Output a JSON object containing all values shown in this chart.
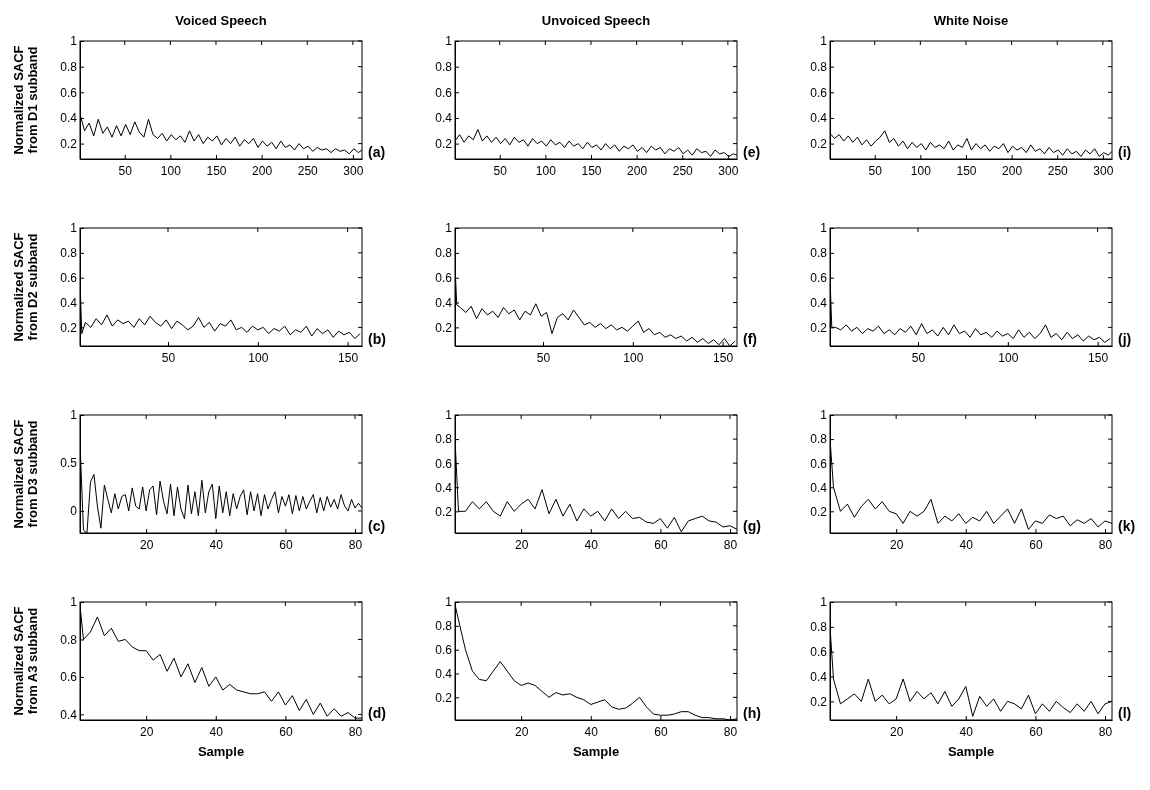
{
  "chart_data": [
    {
      "type": "line",
      "title": "Voiced Speech",
      "ylabel": "Normalized SACF\nfrom D1 subband",
      "annotations": [
        "(a)"
      ],
      "xlim": [
        1,
        310
      ],
      "ylim": [
        0.08,
        1
      ],
      "xticks": [
        50,
        100,
        150,
        200,
        250,
        300
      ],
      "yticks": [
        0.2,
        0.4,
        0.6,
        0.8,
        1
      ],
      "x": [
        1,
        6,
        11,
        16,
        21,
        26,
        31,
        36,
        41,
        46,
        51,
        56,
        61,
        66,
        71,
        76,
        81,
        86,
        91,
        96,
        101,
        106,
        111,
        116,
        121,
        126,
        131,
        136,
        141,
        146,
        151,
        156,
        161,
        166,
        171,
        176,
        181,
        186,
        191,
        196,
        201,
        206,
        211,
        216,
        221,
        226,
        231,
        236,
        241,
        246,
        251,
        256,
        261,
        266,
        271,
        276,
        281,
        286,
        291,
        296,
        301,
        306,
        310
      ],
      "series": [
        {
          "color": "#000000",
          "values": [
            0.43,
            0.3,
            0.36,
            0.26,
            0.39,
            0.28,
            0.33,
            0.25,
            0.34,
            0.26,
            0.35,
            0.27,
            0.37,
            0.29,
            0.25,
            0.39,
            0.27,
            0.24,
            0.28,
            0.22,
            0.27,
            0.23,
            0.26,
            0.21,
            0.3,
            0.22,
            0.27,
            0.2,
            0.25,
            0.22,
            0.26,
            0.19,
            0.24,
            0.2,
            0.25,
            0.18,
            0.23,
            0.2,
            0.24,
            0.17,
            0.22,
            0.18,
            0.21,
            0.16,
            0.22,
            0.17,
            0.19,
            0.15,
            0.2,
            0.16,
            0.18,
            0.14,
            0.17,
            0.15,
            0.16,
            0.13,
            0.16,
            0.14,
            0.15,
            0.12,
            0.16,
            0.13,
            0.15
          ]
        }
      ]
    },
    {
      "type": "line",
      "title": "Unvoiced Speech",
      "annotations": [
        "(e)"
      ],
      "xlim": [
        1,
        310
      ],
      "ylim": [
        0.08,
        1
      ],
      "xticks": [
        50,
        100,
        150,
        200,
        250,
        300
      ],
      "yticks": [
        0.2,
        0.4,
        0.6,
        0.8,
        1
      ],
      "x": [
        1,
        6,
        11,
        16,
        21,
        26,
        31,
        36,
        41,
        46,
        51,
        56,
        61,
        66,
        71,
        76,
        81,
        86,
        91,
        96,
        101,
        106,
        111,
        116,
        121,
        126,
        131,
        136,
        141,
        146,
        151,
        156,
        161,
        166,
        171,
        176,
        181,
        186,
        191,
        196,
        201,
        206,
        211,
        216,
        221,
        226,
        231,
        236,
        241,
        246,
        251,
        256,
        261,
        266,
        271,
        276,
        281,
        286,
        291,
        296,
        301,
        306,
        310
      ],
      "series": [
        {
          "color": "#000000",
          "values": [
            0.22,
            0.27,
            0.21,
            0.26,
            0.23,
            0.31,
            0.22,
            0.26,
            0.21,
            0.25,
            0.2,
            0.24,
            0.19,
            0.25,
            0.21,
            0.23,
            0.18,
            0.24,
            0.2,
            0.22,
            0.18,
            0.23,
            0.19,
            0.21,
            0.17,
            0.22,
            0.18,
            0.2,
            0.16,
            0.21,
            0.17,
            0.19,
            0.15,
            0.2,
            0.16,
            0.19,
            0.14,
            0.18,
            0.16,
            0.19,
            0.14,
            0.17,
            0.13,
            0.18,
            0.15,
            0.17,
            0.12,
            0.16,
            0.14,
            0.17,
            0.12,
            0.15,
            0.11,
            0.16,
            0.13,
            0.14,
            0.1,
            0.15,
            0.12,
            0.13,
            0.1,
            0.12,
            0.11
          ]
        }
      ]
    },
    {
      "type": "line",
      "title": "White Noise",
      "annotations": [
        "(i)"
      ],
      "xlim": [
        1,
        310
      ],
      "ylim": [
        0.08,
        1
      ],
      "xticks": [
        50,
        100,
        150,
        200,
        250,
        300
      ],
      "yticks": [
        0.2,
        0.4,
        0.6,
        0.8,
        1
      ],
      "x": [
        1,
        6,
        11,
        16,
        21,
        26,
        31,
        36,
        41,
        46,
        51,
        56,
        61,
        66,
        71,
        76,
        81,
        86,
        91,
        96,
        101,
        106,
        111,
        116,
        121,
        126,
        131,
        136,
        141,
        146,
        151,
        156,
        161,
        166,
        171,
        176,
        181,
        186,
        191,
        196,
        201,
        206,
        211,
        216,
        221,
        226,
        231,
        236,
        241,
        246,
        251,
        256,
        261,
        266,
        271,
        276,
        281,
        286,
        291,
        296,
        301,
        306,
        310
      ],
      "series": [
        {
          "color": "#000000",
          "values": [
            0.28,
            0.24,
            0.27,
            0.22,
            0.26,
            0.21,
            0.25,
            0.19,
            0.23,
            0.18,
            0.22,
            0.25,
            0.3,
            0.21,
            0.24,
            0.18,
            0.22,
            0.16,
            0.21,
            0.17,
            0.2,
            0.15,
            0.21,
            0.17,
            0.19,
            0.16,
            0.22,
            0.15,
            0.19,
            0.17,
            0.24,
            0.15,
            0.2,
            0.16,
            0.19,
            0.14,
            0.18,
            0.16,
            0.2,
            0.13,
            0.18,
            0.15,
            0.17,
            0.13,
            0.19,
            0.14,
            0.16,
            0.12,
            0.17,
            0.13,
            0.15,
            0.11,
            0.16,
            0.12,
            0.14,
            0.1,
            0.15,
            0.12,
            0.16,
            0.1,
            0.13,
            0.11,
            0.14
          ]
        }
      ]
    },
    {
      "type": "line",
      "ylabel": "Normalized SACF\nfrom D2 subband",
      "annotations": [
        "(b)"
      ],
      "xlim": [
        1,
        158
      ],
      "ylim": [
        0.05,
        1
      ],
      "xticks": [
        50,
        100,
        150
      ],
      "yticks": [
        0.2,
        0.4,
        0.6,
        0.8,
        1
      ],
      "x": [
        1,
        2,
        4,
        7,
        10,
        13,
        16,
        19,
        22,
        25,
        28,
        31,
        34,
        37,
        40,
        43,
        46,
        49,
        52,
        55,
        58,
        61,
        64,
        67,
        70,
        73,
        76,
        79,
        82,
        85,
        88,
        91,
        94,
        97,
        100,
        103,
        106,
        109,
        112,
        115,
        118,
        121,
        124,
        127,
        130,
        133,
        136,
        139,
        142,
        145,
        148,
        151,
        154,
        157
      ],
      "series": [
        {
          "color": "#000000",
          "values": [
            0.57,
            0.15,
            0.24,
            0.2,
            0.27,
            0.22,
            0.3,
            0.21,
            0.26,
            0.23,
            0.25,
            0.2,
            0.27,
            0.22,
            0.29,
            0.24,
            0.21,
            0.26,
            0.19,
            0.25,
            0.22,
            0.18,
            0.21,
            0.28,
            0.2,
            0.24,
            0.17,
            0.23,
            0.21,
            0.26,
            0.18,
            0.2,
            0.16,
            0.21,
            0.18,
            0.2,
            0.15,
            0.19,
            0.17,
            0.21,
            0.14,
            0.18,
            0.16,
            0.21,
            0.13,
            0.19,
            0.15,
            0.18,
            0.12,
            0.17,
            0.14,
            0.16,
            0.11,
            0.15
          ]
        }
      ]
    },
    {
      "type": "line",
      "annotations": [
        "(f)"
      ],
      "xlim": [
        1,
        158
      ],
      "ylim": [
        0.05,
        1
      ],
      "xticks": [
        50,
        100,
        150
      ],
      "yticks": [
        0.2,
        0.4,
        0.6,
        0.8,
        1
      ],
      "x": [
        1,
        2,
        4,
        7,
        10,
        13,
        16,
        19,
        22,
        25,
        28,
        31,
        34,
        37,
        40,
        43,
        46,
        49,
        52,
        55,
        58,
        61,
        64,
        67,
        70,
        73,
        76,
        79,
        82,
        85,
        88,
        91,
        94,
        97,
        100,
        103,
        106,
        109,
        112,
        115,
        118,
        121,
        124,
        127,
        130,
        133,
        136,
        139,
        142,
        145,
        148,
        151,
        154,
        157
      ],
      "series": [
        {
          "color": "#000000",
          "values": [
            0.69,
            0.38,
            0.36,
            0.32,
            0.37,
            0.27,
            0.35,
            0.3,
            0.33,
            0.28,
            0.36,
            0.31,
            0.34,
            0.26,
            0.33,
            0.3,
            0.39,
            0.29,
            0.32,
            0.15,
            0.28,
            0.31,
            0.26,
            0.34,
            0.28,
            0.22,
            0.24,
            0.2,
            0.23,
            0.19,
            0.22,
            0.18,
            0.2,
            0.17,
            0.21,
            0.25,
            0.16,
            0.19,
            0.14,
            0.16,
            0.12,
            0.14,
            0.11,
            0.13,
            0.09,
            0.12,
            0.08,
            0.11,
            0.07,
            0.1,
            0.06,
            0.11,
            0.05,
            0.09
          ]
        }
      ]
    },
    {
      "type": "line",
      "annotations": [
        "(j)"
      ],
      "xlim": [
        1,
        158
      ],
      "ylim": [
        0.05,
        1
      ],
      "xticks": [
        50,
        100,
        150
      ],
      "yticks": [
        0.2,
        0.4,
        0.6,
        0.8,
        1
      ],
      "x": [
        1,
        2,
        4,
        7,
        10,
        13,
        16,
        19,
        22,
        25,
        28,
        31,
        34,
        37,
        40,
        43,
        46,
        49,
        52,
        55,
        58,
        61,
        64,
        67,
        70,
        73,
        76,
        79,
        82,
        85,
        88,
        91,
        94,
        97,
        100,
        103,
        106,
        109,
        112,
        115,
        118,
        121,
        124,
        127,
        130,
        133,
        136,
        139,
        142,
        145,
        148,
        151,
        154,
        157
      ],
      "series": [
        {
          "color": "#000000",
          "values": [
            0.6,
            0.2,
            0.2,
            0.18,
            0.22,
            0.17,
            0.2,
            0.15,
            0.19,
            0.17,
            0.21,
            0.15,
            0.18,
            0.14,
            0.19,
            0.16,
            0.21,
            0.14,
            0.23,
            0.15,
            0.18,
            0.13,
            0.2,
            0.14,
            0.22,
            0.15,
            0.17,
            0.12,
            0.19,
            0.14,
            0.16,
            0.12,
            0.17,
            0.13,
            0.15,
            0.11,
            0.18,
            0.12,
            0.16,
            0.11,
            0.15,
            0.22,
            0.12,
            0.15,
            0.1,
            0.16,
            0.11,
            0.14,
            0.09,
            0.13,
            0.1,
            0.12,
            0.08,
            0.11
          ]
        }
      ]
    },
    {
      "type": "line",
      "ylabel": "Normalized SACF\nfrom D3 subband",
      "annotations": [
        "(c)"
      ],
      "xlim": [
        1,
        82
      ],
      "ylim": [
        -0.23,
        1
      ],
      "xticks": [
        20,
        40,
        60,
        80
      ],
      "yticks": [
        0,
        0.5,
        1
      ],
      "x": [
        1,
        2,
        3,
        4,
        5,
        6,
        7,
        8,
        9,
        10,
        11,
        12,
        13,
        14,
        15,
        16,
        17,
        18,
        19,
        20,
        21,
        22,
        23,
        24,
        25,
        26,
        27,
        28,
        29,
        30,
        31,
        32,
        33,
        34,
        35,
        36,
        37,
        38,
        39,
        40,
        41,
        42,
        43,
        44,
        45,
        46,
        47,
        48,
        49,
        50,
        51,
        52,
        53,
        54,
        55,
        56,
        57,
        58,
        59,
        60,
        61,
        62,
        63,
        64,
        65,
        66,
        67,
        68,
        69,
        70,
        71,
        72,
        73,
        74,
        75,
        76,
        77,
        78,
        79,
        80,
        81,
        82
      ],
      "series": [
        {
          "color": "#000000",
          "values": [
            0.7,
            -0.2,
            -0.23,
            0.3,
            0.38,
            0.05,
            -0.18,
            0.27,
            0.12,
            -0.02,
            0.18,
            0.02,
            0.15,
            0.17,
            0.0,
            0.24,
            0.05,
            0.02,
            0.25,
            0.0,
            0.22,
            0.26,
            -0.04,
            0.31,
            0.1,
            -0.03,
            0.28,
            -0.05,
            0.25,
            0.02,
            -0.08,
            0.27,
            -0.03,
            0.2,
            -0.05,
            0.32,
            -0.02,
            0.2,
            0.28,
            -0.08,
            0.26,
            -0.02,
            0.2,
            -0.05,
            0.18,
            0.02,
            0.15,
            0.22,
            -0.04,
            0.2,
            0.0,
            0.18,
            -0.05,
            0.17,
            0.02,
            0.12,
            0.2,
            -0.02,
            0.15,
            0.05,
            0.17,
            -0.03,
            0.16,
            0.0,
            0.15,
            0.02,
            0.1,
            0.17,
            -0.02,
            0.14,
            0.0,
            0.15,
            0.04,
            0.12,
            0.02,
            0.17,
            0.05,
            0.0,
            0.12,
            0.03,
            0.08,
            0.03
          ]
        }
      ]
    },
    {
      "type": "line",
      "annotations": [
        "(g)"
      ],
      "xlim": [
        1,
        82
      ],
      "ylim": [
        0.02,
        1
      ],
      "xticks": [
        20,
        40,
        60,
        80
      ],
      "yticks": [
        0.2,
        0.4,
        0.6,
        0.8,
        1
      ],
      "x": [
        1,
        2,
        4,
        6,
        8,
        10,
        12,
        14,
        16,
        18,
        20,
        22,
        24,
        26,
        28,
        30,
        32,
        34,
        36,
        38,
        40,
        42,
        44,
        46,
        48,
        50,
        52,
        54,
        56,
        58,
        60,
        62,
        64,
        66,
        68,
        70,
        72,
        74,
        76,
        78,
        80,
        82
      ],
      "series": [
        {
          "color": "#000000",
          "values": [
            0.8,
            0.2,
            0.2,
            0.28,
            0.22,
            0.28,
            0.2,
            0.16,
            0.28,
            0.2,
            0.26,
            0.3,
            0.22,
            0.38,
            0.18,
            0.3,
            0.16,
            0.26,
            0.12,
            0.22,
            0.16,
            0.2,
            0.12,
            0.22,
            0.14,
            0.2,
            0.14,
            0.15,
            0.11,
            0.1,
            0.14,
            0.06,
            0.15,
            0.03,
            0.12,
            0.14,
            0.16,
            0.12,
            0.11,
            0.07,
            0.08,
            0.05
          ]
        }
      ]
    },
    {
      "type": "line",
      "annotations": [
        "(k)"
      ],
      "xlim": [
        1,
        82
      ],
      "ylim": [
        0.02,
        1
      ],
      "xticks": [
        20,
        40,
        60,
        80
      ],
      "yticks": [
        0.2,
        0.4,
        0.6,
        0.8,
        1
      ],
      "x": [
        1,
        2,
        4,
        6,
        8,
        10,
        12,
        14,
        16,
        18,
        20,
        22,
        24,
        26,
        28,
        30,
        32,
        34,
        36,
        38,
        40,
        42,
        44,
        46,
        48,
        50,
        52,
        54,
        56,
        58,
        60,
        62,
        64,
        66,
        68,
        70,
        72,
        74,
        76,
        78,
        80,
        82
      ],
      "series": [
        {
          "color": "#000000",
          "values": [
            0.8,
            0.4,
            0.2,
            0.26,
            0.15,
            0.24,
            0.3,
            0.22,
            0.28,
            0.2,
            0.18,
            0.1,
            0.2,
            0.16,
            0.2,
            0.3,
            0.1,
            0.16,
            0.12,
            0.18,
            0.1,
            0.15,
            0.12,
            0.2,
            0.1,
            0.16,
            0.22,
            0.1,
            0.22,
            0.05,
            0.12,
            0.1,
            0.17,
            0.14,
            0.16,
            0.08,
            0.13,
            0.1,
            0.14,
            0.07,
            0.12,
            0.1
          ]
        }
      ]
    },
    {
      "type": "line",
      "ylabel": "Normalized SACF\nfrom A3 subband",
      "xlabel": "Sample",
      "annotations": [
        "(d)"
      ],
      "xlim": [
        1,
        82
      ],
      "ylim": [
        0.37,
        1
      ],
      "xticks": [
        20,
        40,
        60,
        80
      ],
      "yticks": [
        0.4,
        0.6,
        0.8,
        1
      ],
      "x": [
        1,
        2,
        4,
        6,
        8,
        10,
        12,
        14,
        16,
        18,
        20,
        22,
        24,
        26,
        28,
        30,
        32,
        34,
        36,
        38,
        40,
        42,
        44,
        46,
        48,
        50,
        52,
        54,
        56,
        58,
        60,
        62,
        64,
        66,
        68,
        70,
        72,
        74,
        76,
        78,
        80,
        82
      ],
      "series": [
        {
          "color": "#000000",
          "values": [
            0.98,
            0.8,
            0.84,
            0.92,
            0.82,
            0.86,
            0.79,
            0.8,
            0.76,
            0.74,
            0.74,
            0.69,
            0.72,
            0.63,
            0.7,
            0.6,
            0.67,
            0.57,
            0.65,
            0.55,
            0.6,
            0.53,
            0.56,
            0.53,
            0.52,
            0.51,
            0.51,
            0.52,
            0.47,
            0.52,
            0.45,
            0.5,
            0.42,
            0.48,
            0.4,
            0.46,
            0.39,
            0.43,
            0.39,
            0.41,
            0.38,
            0.38
          ]
        }
      ]
    },
    {
      "type": "line",
      "xlabel": "Sample",
      "annotations": [
        "(h)"
      ],
      "xlim": [
        1,
        82
      ],
      "ylim": [
        0.01,
        1
      ],
      "xticks": [
        20,
        40,
        60,
        80
      ],
      "yticks": [
        0.2,
        0.4,
        0.6,
        0.8,
        1
      ],
      "x": [
        1,
        2,
        4,
        6,
        8,
        10,
        12,
        14,
        16,
        18,
        20,
        22,
        24,
        26,
        28,
        30,
        32,
        34,
        36,
        38,
        40,
        42,
        44,
        46,
        48,
        50,
        52,
        54,
        56,
        58,
        60,
        62,
        64,
        66,
        68,
        70,
        72,
        74,
        76,
        78,
        80,
        82
      ],
      "series": [
        {
          "color": "#000000",
          "values": [
            0.98,
            0.85,
            0.6,
            0.42,
            0.35,
            0.34,
            0.42,
            0.5,
            0.42,
            0.34,
            0.3,
            0.32,
            0.3,
            0.25,
            0.2,
            0.24,
            0.22,
            0.23,
            0.2,
            0.18,
            0.14,
            0.16,
            0.18,
            0.12,
            0.1,
            0.11,
            0.15,
            0.2,
            0.12,
            0.06,
            0.05,
            0.05,
            0.06,
            0.08,
            0.08,
            0.05,
            0.03,
            0.03,
            0.02,
            0.02,
            0.01,
            0.02
          ]
        }
      ]
    },
    {
      "type": "line",
      "xlabel": "Sample",
      "annotations": [
        "(l)"
      ],
      "xlim": [
        1,
        82
      ],
      "ylim": [
        0.05,
        1
      ],
      "xticks": [
        20,
        40,
        60,
        80
      ],
      "yticks": [
        0.2,
        0.4,
        0.6,
        0.8,
        1
      ],
      "x": [
        1,
        2,
        4,
        6,
        8,
        10,
        12,
        14,
        16,
        18,
        20,
        22,
        24,
        26,
        28,
        30,
        32,
        34,
        36,
        38,
        40,
        42,
        44,
        46,
        48,
        50,
        52,
        54,
        56,
        58,
        60,
        62,
        64,
        66,
        68,
        70,
        72,
        74,
        76,
        78,
        80,
        82
      ],
      "series": [
        {
          "color": "#000000",
          "values": [
            0.8,
            0.38,
            0.18,
            0.22,
            0.26,
            0.2,
            0.38,
            0.2,
            0.25,
            0.18,
            0.22,
            0.38,
            0.2,
            0.28,
            0.22,
            0.27,
            0.18,
            0.28,
            0.16,
            0.22,
            0.32,
            0.08,
            0.24,
            0.16,
            0.22,
            0.12,
            0.2,
            0.18,
            0.14,
            0.25,
            0.1,
            0.18,
            0.12,
            0.2,
            0.15,
            0.11,
            0.18,
            0.12,
            0.2,
            0.1,
            0.18,
            0.2
          ]
        }
      ]
    }
  ]
}
